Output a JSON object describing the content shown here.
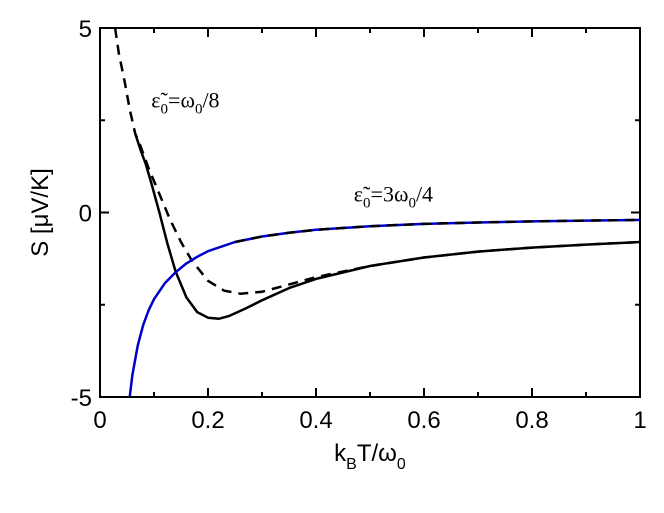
{
  "chart_data": {
    "type": "line",
    "xlabel": {
      "main": "k",
      "sub1": "B",
      "mid": "T/ω",
      "sub2": "0"
    },
    "ylabel": "S [μV/K]",
    "xlim": [
      0,
      1
    ],
    "ylim": [
      -5,
      5
    ],
    "xticks": [
      "0",
      "0.2",
      "0.4",
      "0.6",
      "0.8",
      "1"
    ],
    "yticks": [
      "-5",
      "0",
      "5"
    ],
    "grid": false,
    "annotations": [
      {
        "text": "ε̃",
        "sub": "0",
        "rest": "=ω",
        "sub2": "0",
        "tail": "/8",
        "x": 0.095,
        "y": 2.85
      },
      {
        "text": "ε̃",
        "sub": "0",
        "rest": "=3ω",
        "sub2": "0",
        "tail": "/4",
        "x": 0.47,
        "y": 0.3
      }
    ],
    "series": [
      {
        "color": "#000000",
        "dash": "10,7",
        "x": [
          0.028,
          0.035,
          0.045,
          0.055,
          0.065,
          0.075,
          0.09,
          0.11,
          0.13,
          0.15,
          0.17,
          0.2,
          0.23,
          0.26,
          0.3,
          0.35,
          0.4,
          0.5,
          0.6,
          0.7,
          0.8,
          0.9,
          1.0
        ],
        "y": [
          5.0,
          4.3,
          3.6,
          2.8,
          2.15,
          1.8,
          1.2,
          0.5,
          -0.2,
          -0.8,
          -1.3,
          -1.85,
          -2.12,
          -2.2,
          -2.15,
          -1.95,
          -1.75,
          -1.45,
          -1.22,
          -1.06,
          -0.95,
          -0.87,
          -0.8
        ]
      },
      {
        "color": "#000000",
        "dash": "",
        "x": [
          0.065,
          0.075,
          0.085,
          0.095,
          0.11,
          0.125,
          0.14,
          0.16,
          0.18,
          0.2,
          0.22,
          0.24,
          0.27,
          0.3,
          0.35,
          0.4,
          0.5,
          0.6,
          0.7,
          0.8,
          0.9,
          1.0
        ],
        "y": [
          2.15,
          1.7,
          1.3,
          0.8,
          0.0,
          -0.85,
          -1.6,
          -2.3,
          -2.7,
          -2.85,
          -2.88,
          -2.8,
          -2.6,
          -2.38,
          -2.05,
          -1.8,
          -1.45,
          -1.22,
          -1.06,
          -0.95,
          -0.87,
          -0.8
        ]
      },
      {
        "color": "#0000cc",
        "dash": "",
        "x": [
          0.055,
          0.06,
          0.07,
          0.08,
          0.09,
          0.1,
          0.12,
          0.14,
          0.16,
          0.18,
          0.2,
          0.25,
          0.3,
          0.35,
          0.4,
          0.5,
          0.6,
          0.7,
          0.8,
          0.9,
          1.0
        ],
        "y": [
          -5.0,
          -4.4,
          -3.6,
          -3.05,
          -2.65,
          -2.35,
          -1.92,
          -1.62,
          -1.38,
          -1.2,
          -1.05,
          -0.8,
          -0.65,
          -0.55,
          -0.47,
          -0.37,
          -0.31,
          -0.27,
          -0.24,
          -0.22,
          -0.2
        ]
      },
      {
        "color": "#000000",
        "dash": "10,7",
        "x": [
          0.25,
          0.3,
          0.35,
          0.4,
          0.5,
          0.6,
          0.7,
          0.8,
          0.9,
          1.0
        ],
        "y": [
          -0.8,
          -0.65,
          -0.55,
          -0.47,
          -0.37,
          -0.31,
          -0.27,
          -0.24,
          -0.22,
          -0.2
        ]
      }
    ]
  }
}
